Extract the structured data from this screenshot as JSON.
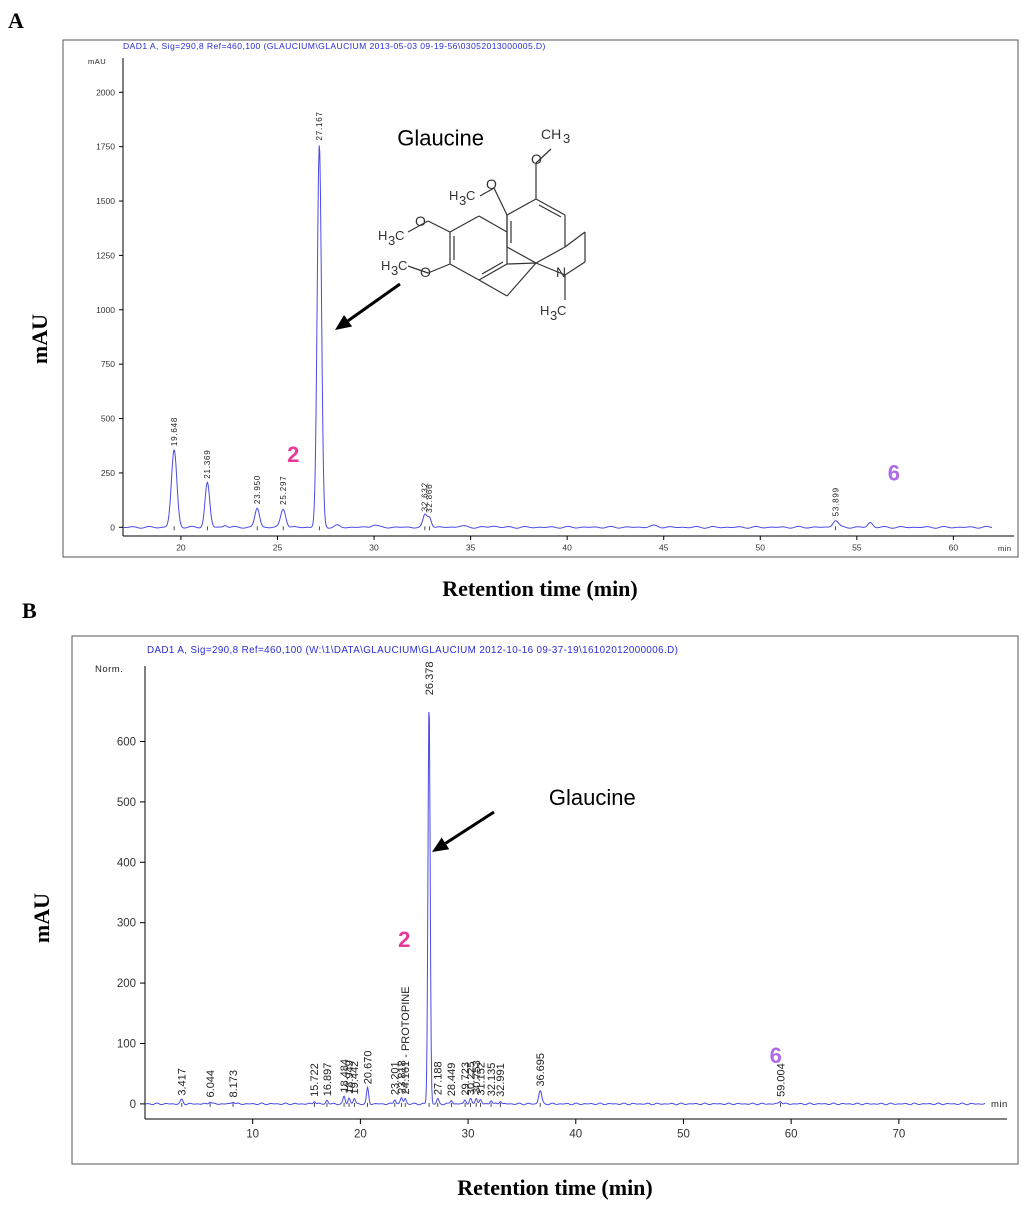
{
  "figure": {
    "panel_a_letter": "A",
    "panel_b_letter": "B",
    "panel_a_xlabel": "Retention time (min)",
    "panel_a_ylabel": "mAU",
    "panel_b_xlabel": "Retention time (min)",
    "panel_b_ylabel": "mAU"
  },
  "colors": {
    "trace": "#4a4ae6",
    "header": "#2b2bd9",
    "pink": "#e8399a",
    "violet": "#b06ae6",
    "axis": "#000000",
    "tick": "#333333"
  },
  "chart_data": [
    {
      "type": "line",
      "panel": "A",
      "title": "DAD1 A, Sig=290,8 Ref=460,100 (GLAUCIUM\\GLAUCIUM 2013-05-03 09-19-56\\03052013000005.D)",
      "unit_label": "mAU",
      "x_unit": "min",
      "xlabel": "Retention time (min)",
      "ylabel": "mAU",
      "xlim": [
        17,
        62
      ],
      "ylim": [
        -40,
        2130
      ],
      "xticks": [
        20,
        25,
        30,
        35,
        40,
        45,
        50,
        55,
        60
      ],
      "yticks": [
        0,
        250,
        500,
        750,
        1000,
        1250,
        1500,
        1750,
        2000
      ],
      "peaks": [
        {
          "rt": 19.648,
          "height": 355,
          "width": 0.14,
          "label": "19.648"
        },
        {
          "rt": 21.369,
          "height": 205,
          "width": 0.12,
          "label": "21.369"
        },
        {
          "rt": 22.3,
          "height": 10,
          "width": 0.1,
          "label": ""
        },
        {
          "rt": 23.95,
          "height": 88,
          "width": 0.12,
          "label": "23.950"
        },
        {
          "rt": 25.297,
          "height": 85,
          "width": 0.13,
          "label": "25.297"
        },
        {
          "rt": 27.167,
          "height": 1760,
          "width": 0.11,
          "label": "27.167"
        },
        {
          "rt": 28.1,
          "height": 8,
          "width": 0.12,
          "label": ""
        },
        {
          "rt": 30.0,
          "height": 12,
          "width": 0.15,
          "label": ""
        },
        {
          "rt": 32.632,
          "height": 55,
          "width": 0.1,
          "label": "32.632"
        },
        {
          "rt": 32.866,
          "height": 48,
          "width": 0.1,
          "label": "32.866"
        },
        {
          "rt": 34.5,
          "height": 6,
          "width": 0.2,
          "label": ""
        },
        {
          "rt": 36.2,
          "height": 5,
          "width": 0.2,
          "label": ""
        },
        {
          "rt": 44.5,
          "height": 6,
          "width": 0.25,
          "label": ""
        },
        {
          "rt": 53.899,
          "height": 32,
          "width": 0.14,
          "label": "53.899"
        },
        {
          "rt": 55.7,
          "height": 22,
          "width": 0.12,
          "label": ""
        }
      ],
      "annotations": [
        {
          "text": "2",
          "rt": 25.5,
          "y": 300,
          "color": "pink"
        },
        {
          "text": "6",
          "rt": 56.6,
          "y": 215,
          "color": "violet"
        },
        {
          "text": "Glaucine",
          "rt": 31.2,
          "y": 1755,
          "color": "black"
        }
      ],
      "compound": {
        "name": "Glaucine",
        "atom_labels": [
          "CH3",
          "H3C",
          "H3C",
          "H3C",
          "N",
          "H3C"
        ]
      }
    },
    {
      "type": "line",
      "panel": "B",
      "title": "DAD1 A, Sig=290,8 Ref=460,100 (W:\\1\\DATA\\GLAUCIUM\\GLAUCIUM 2012-10-16 09-37-19\\16102012000006.D)",
      "unit_label": "Norm.",
      "x_unit": "min",
      "xlabel": "Retention time (min)",
      "ylabel": "mAU",
      "xlim": [
        0,
        78
      ],
      "ylim": [
        -25,
        715
      ],
      "xticks": [
        10,
        20,
        30,
        40,
        50,
        60,
        70
      ],
      "yticks": [
        0,
        100,
        200,
        300,
        400,
        500,
        600
      ],
      "peaks": [
        {
          "rt": 3.417,
          "height": 7,
          "width": 0.12,
          "label": "3.417"
        },
        {
          "rt": 6.044,
          "height": 4,
          "width": 0.12,
          "label": "6.044"
        },
        {
          "rt": 8.173,
          "height": 4,
          "width": 0.12,
          "label": "8.173"
        },
        {
          "rt": 15.722,
          "height": 5,
          "width": 0.1,
          "label": "15.722"
        },
        {
          "rt": 16.897,
          "height": 6,
          "width": 0.1,
          "label": "16.897"
        },
        {
          "rt": 18.484,
          "height": 12,
          "width": 0.1,
          "label": "18.484"
        },
        {
          "rt": 18.949,
          "height": 10,
          "width": 0.1,
          "label": "18.949"
        },
        {
          "rt": 19.442,
          "height": 9,
          "width": 0.1,
          "label": "19.442"
        },
        {
          "rt": 20.67,
          "height": 26,
          "width": 0.1,
          "label": "20.670"
        },
        {
          "rt": 23.201,
          "height": 8,
          "width": 0.1,
          "label": "23.201"
        },
        {
          "rt": 23.818,
          "height": 10,
          "width": 0.1,
          "label": "23.818"
        },
        {
          "rt": 24.161,
          "height": 9,
          "width": 0.1,
          "label": "24.161 - PROTOPINE"
        },
        {
          "rt": 26.378,
          "height": 670,
          "width": 0.1,
          "label": "26.378"
        },
        {
          "rt": 27.188,
          "height": 8,
          "width": 0.1,
          "label": "27.188"
        },
        {
          "rt": 28.449,
          "height": 6,
          "width": 0.1,
          "label": "28.449"
        },
        {
          "rt": 29.723,
          "height": 7,
          "width": 0.1,
          "label": "29.723"
        },
        {
          "rt": 30.225,
          "height": 8,
          "width": 0.1,
          "label": "30.225"
        },
        {
          "rt": 30.753,
          "height": 10,
          "width": 0.1,
          "label": "30.753"
        },
        {
          "rt": 31.152,
          "height": 7,
          "width": 0.1,
          "label": "31.152"
        },
        {
          "rt": 32.135,
          "height": 6,
          "width": 0.1,
          "label": "32.135"
        },
        {
          "rt": 32.991,
          "height": 5,
          "width": 0.1,
          "label": "32.991"
        },
        {
          "rt": 36.695,
          "height": 22,
          "width": 0.14,
          "label": "36.695"
        },
        {
          "rt": 59.004,
          "height": 5,
          "width": 0.12,
          "label": "59.004"
        }
      ],
      "annotations": [
        {
          "text": "2",
          "rt": 23.5,
          "y": 260,
          "color": "pink"
        },
        {
          "text": "6",
          "rt": 58.0,
          "y": 68,
          "color": "violet"
        },
        {
          "text": "Glaucine",
          "rt": 37.5,
          "y": 495,
          "color": "black"
        }
      ]
    }
  ]
}
